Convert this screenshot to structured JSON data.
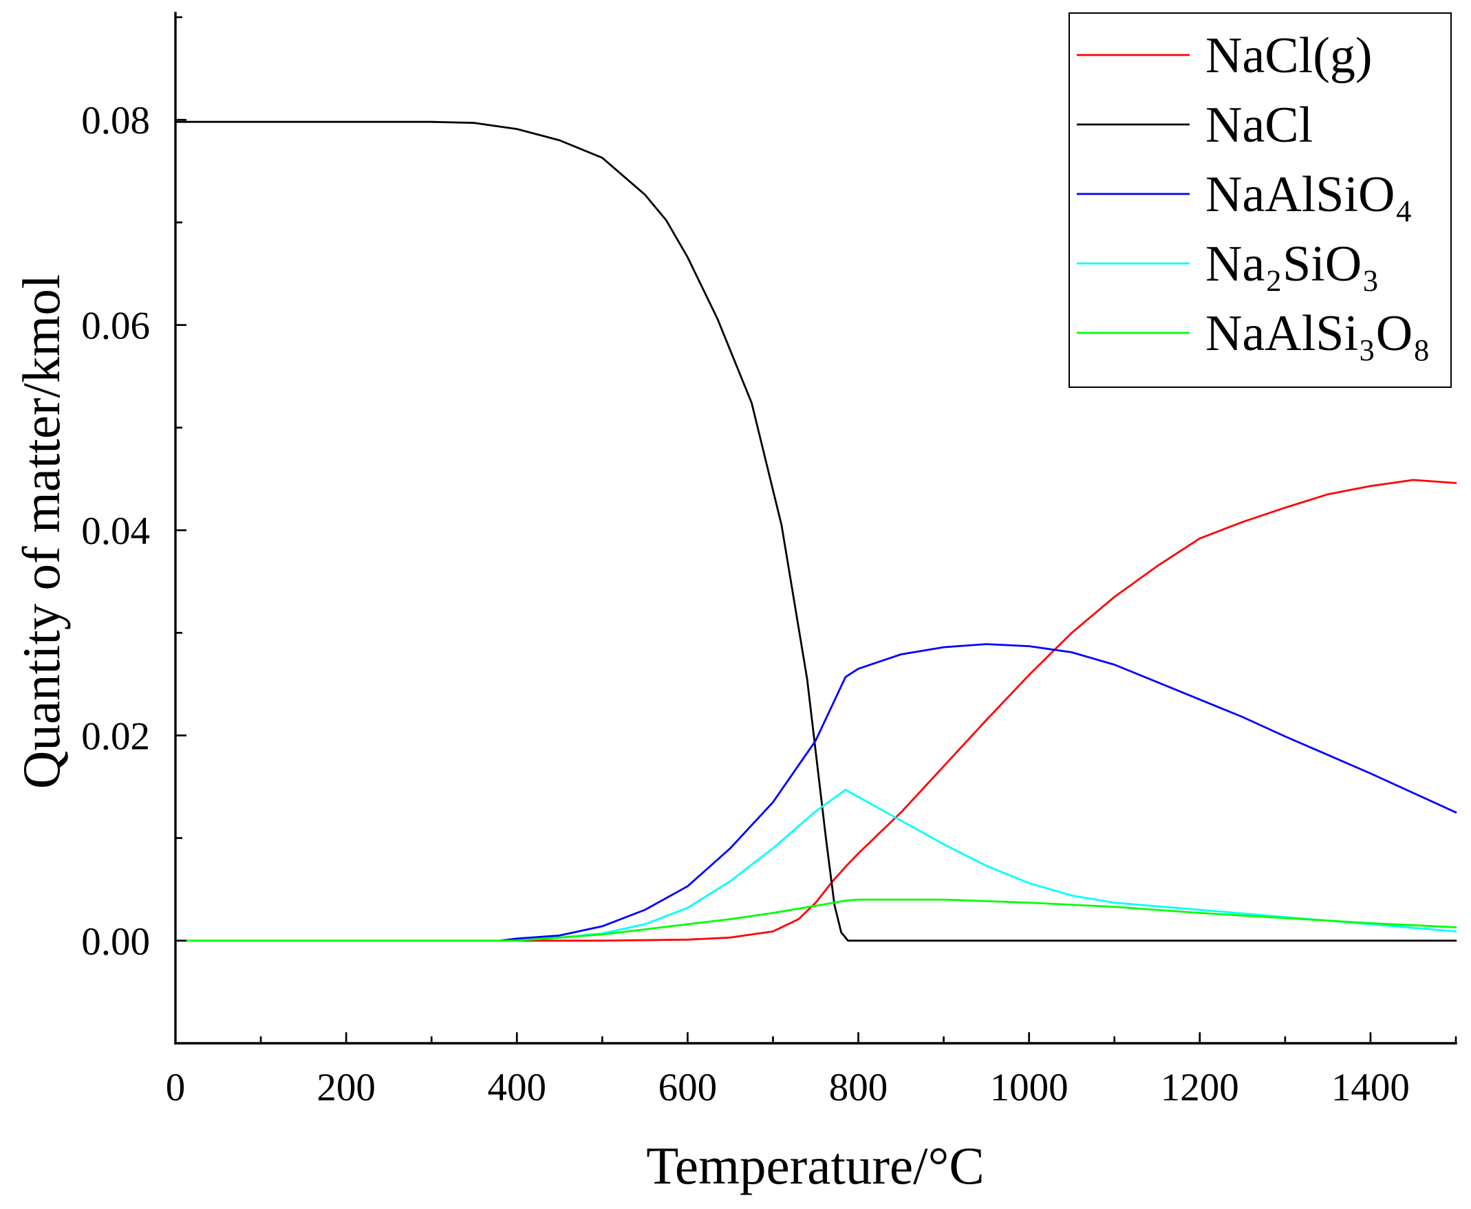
{
  "chart_data": {
    "type": "line",
    "xlabel": "Temperature/°C",
    "ylabel": "Quantity of matter/kmol",
    "xlim": [
      0,
      1500
    ],
    "ylim": [
      -0.01,
      0.09
    ],
    "xticks": [
      0,
      200,
      400,
      600,
      800,
      1000,
      1200,
      1400
    ],
    "xtick_labels": [
      "0",
      "200",
      "400",
      "600",
      "800",
      "1000",
      "1200",
      "1400"
    ],
    "yticks": [
      0,
      0.02,
      0.04,
      0.06,
      0.08
    ],
    "ytick_labels": [
      "0.00",
      "0.02",
      "0.04",
      "0.06",
      "0.08"
    ],
    "grid": false,
    "legend_position": "top-right",
    "series": [
      {
        "name": "NaCl(g)",
        "color": "#ff0000",
        "x": [
          400,
          500,
          600,
          650,
          700,
          730,
          750,
          770,
          785,
          800,
          850,
          900,
          950,
          1000,
          1050,
          1100,
          1150,
          1200,
          1250,
          1300,
          1350,
          1400,
          1450,
          1500
        ],
        "y": [
          0,
          0,
          0.0001,
          0.0003,
          0.0009,
          0.0021,
          0.0037,
          0.0058,
          0.0072,
          0.0085,
          0.0125,
          0.017,
          0.0215,
          0.0259,
          0.03,
          0.0335,
          0.0365,
          0.0392,
          0.0408,
          0.0422,
          0.0435,
          0.0443,
          0.0449,
          0.0446
        ]
      },
      {
        "name": "NaCl",
        "color": "#000000",
        "x": [
          0,
          100,
          200,
          300,
          350,
          400,
          450,
          500,
          550,
          575,
          600,
          635,
          675,
          710,
          740,
          762,
          772,
          780,
          788,
          1500
        ],
        "y": [
          0.0798,
          0.0798,
          0.0798,
          0.0798,
          0.0797,
          0.0791,
          0.078,
          0.0763,
          0.0727,
          0.0702,
          0.0666,
          0.0606,
          0.0524,
          0.0405,
          0.0255,
          0.01,
          0.0035,
          0.0008,
          0,
          0
        ]
      },
      {
        "name": "NaAlSiO₄",
        "color": "#0000ff",
        "x": [
          380,
          400,
          450,
          500,
          550,
          600,
          650,
          700,
          750,
          785,
          800,
          850,
          900,
          950,
          1000,
          1050,
          1100,
          1150,
          1200,
          1250,
          1300,
          1350,
          1400,
          1450,
          1500
        ],
        "y": [
          0,
          0.0002,
          0.0005,
          0.0014,
          0.003,
          0.0053,
          0.009,
          0.0135,
          0.0195,
          0.0257,
          0.0265,
          0.0279,
          0.0286,
          0.0289,
          0.0287,
          0.0281,
          0.0269,
          0.0252,
          0.0235,
          0.0218,
          0.0199,
          0.0181,
          0.0163,
          0.0144,
          0.0125
        ]
      },
      {
        "name": "Na₂SiO₃",
        "color": "#00ffff",
        "x": [
          400,
          450,
          500,
          550,
          600,
          650,
          700,
          750,
          785,
          800,
          850,
          900,
          950,
          1000,
          1050,
          1100,
          1200,
          1300,
          1400,
          1500
        ],
        "y": [
          0,
          0.0003,
          0.0007,
          0.0016,
          0.0032,
          0.0058,
          0.009,
          0.0126,
          0.0147,
          0.014,
          0.0117,
          0.0094,
          0.0073,
          0.0056,
          0.0044,
          0.0037,
          0.003,
          0.0023,
          0.0016,
          0.0009
        ]
      },
      {
        "name": "NaAlSi₃O₈",
        "color": "#00ff00",
        "x": [
          0,
          400,
          450,
          500,
          550,
          600,
          650,
          700,
          750,
          785,
          800,
          900,
          1000,
          1100,
          1200,
          1300,
          1400,
          1500
        ],
        "y": [
          0,
          0,
          0.0003,
          0.0006,
          0.0011,
          0.0016,
          0.0021,
          0.0027,
          0.0034,
          0.0039,
          0.004,
          0.004,
          0.0037,
          0.0033,
          0.0027,
          0.0022,
          0.0017,
          0.0013
        ]
      }
    ]
  }
}
